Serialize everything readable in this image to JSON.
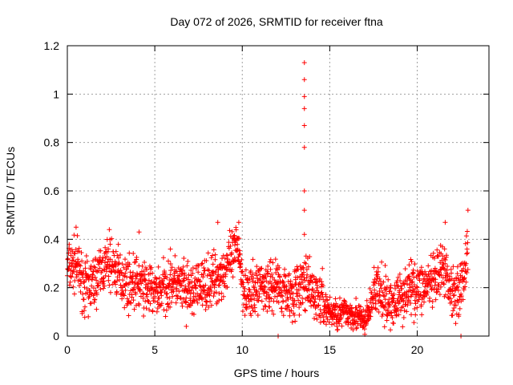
{
  "colors": {
    "series": "#ff0000",
    "grid": "#a0a0a0",
    "axis": "#000000"
  },
  "chart_data": {
    "type": "scatter",
    "title": "Day 072 of 2026, SRMTID for receiver ftna",
    "xlabel": "GPS time / hours",
    "ylabel": "SRMTID / TECUs",
    "xlim": [
      0,
      24.1
    ],
    "ylim": [
      0,
      1.2
    ],
    "x_ticks": [
      0,
      5,
      10,
      15,
      20
    ],
    "x_tick_labels": [
      "0",
      "5",
      "10",
      "15",
      "20"
    ],
    "y_ticks": [
      0,
      0.2,
      0.4,
      0.6,
      0.8,
      1,
      1.2
    ],
    "y_tick_labels": [
      "0",
      "0.2",
      "0.4",
      "0.6",
      "0.8",
      "1",
      "1.2"
    ],
    "grid": true,
    "marker": "+",
    "series": [
      {
        "name": "SRMTID",
        "trend": [
          [
            0.0,
            0.28
          ],
          [
            0.5,
            0.3
          ],
          [
            1.0,
            0.2
          ],
          [
            1.5,
            0.22
          ],
          [
            2.0,
            0.28
          ],
          [
            2.5,
            0.3
          ],
          [
            3.0,
            0.25
          ],
          [
            3.5,
            0.22
          ],
          [
            4.0,
            0.22
          ],
          [
            4.5,
            0.2
          ],
          [
            5.0,
            0.18
          ],
          [
            5.5,
            0.2
          ],
          [
            6.0,
            0.23
          ],
          [
            6.5,
            0.2
          ],
          [
            7.0,
            0.18
          ],
          [
            7.5,
            0.2
          ],
          [
            8.0,
            0.22
          ],
          [
            8.5,
            0.24
          ],
          [
            9.0,
            0.27
          ],
          [
            9.5,
            0.33
          ],
          [
            9.8,
            0.38
          ],
          [
            10.0,
            0.22
          ],
          [
            10.5,
            0.16
          ],
          [
            11.0,
            0.22
          ],
          [
            11.5,
            0.2
          ],
          [
            12.0,
            0.22
          ],
          [
            12.5,
            0.18
          ],
          [
            13.0,
            0.18
          ],
          [
            13.5,
            0.22
          ],
          [
            14.0,
            0.18
          ],
          [
            14.5,
            0.15
          ],
          [
            15.0,
            0.1
          ],
          [
            15.5,
            0.09
          ],
          [
            16.0,
            0.1
          ],
          [
            16.5,
            0.09
          ],
          [
            17.0,
            0.05
          ],
          [
            17.3,
            0.12
          ],
          [
            17.6,
            0.2
          ],
          [
            18.0,
            0.16
          ],
          [
            18.5,
            0.13
          ],
          [
            19.0,
            0.16
          ],
          [
            19.5,
            0.2
          ],
          [
            20.0,
            0.2
          ],
          [
            20.5,
            0.21
          ],
          [
            21.0,
            0.22
          ],
          [
            21.5,
            0.28
          ],
          [
            22.0,
            0.18
          ],
          [
            22.5,
            0.2
          ],
          [
            22.9,
            0.35
          ]
        ],
        "extra_points": [
          [
            13.55,
            1.13
          ],
          [
            13.55,
            1.06
          ],
          [
            13.55,
            0.99
          ],
          [
            13.55,
            0.94
          ],
          [
            13.55,
            0.87
          ],
          [
            13.55,
            0.78
          ],
          [
            13.55,
            0.6
          ],
          [
            13.55,
            0.52
          ],
          [
            13.55,
            0.42
          ],
          [
            0.5,
            0.45
          ],
          [
            2.4,
            0.44
          ],
          [
            4.1,
            0.43
          ],
          [
            8.6,
            0.47
          ],
          [
            9.8,
            0.47
          ],
          [
            21.6,
            0.47
          ],
          [
            22.9,
            0.52
          ],
          [
            12.05,
            0.0
          ],
          [
            22.5,
            0.0
          ],
          [
            6.8,
            0.04
          ],
          [
            1.2,
            0.08
          ]
        ]
      }
    ]
  }
}
